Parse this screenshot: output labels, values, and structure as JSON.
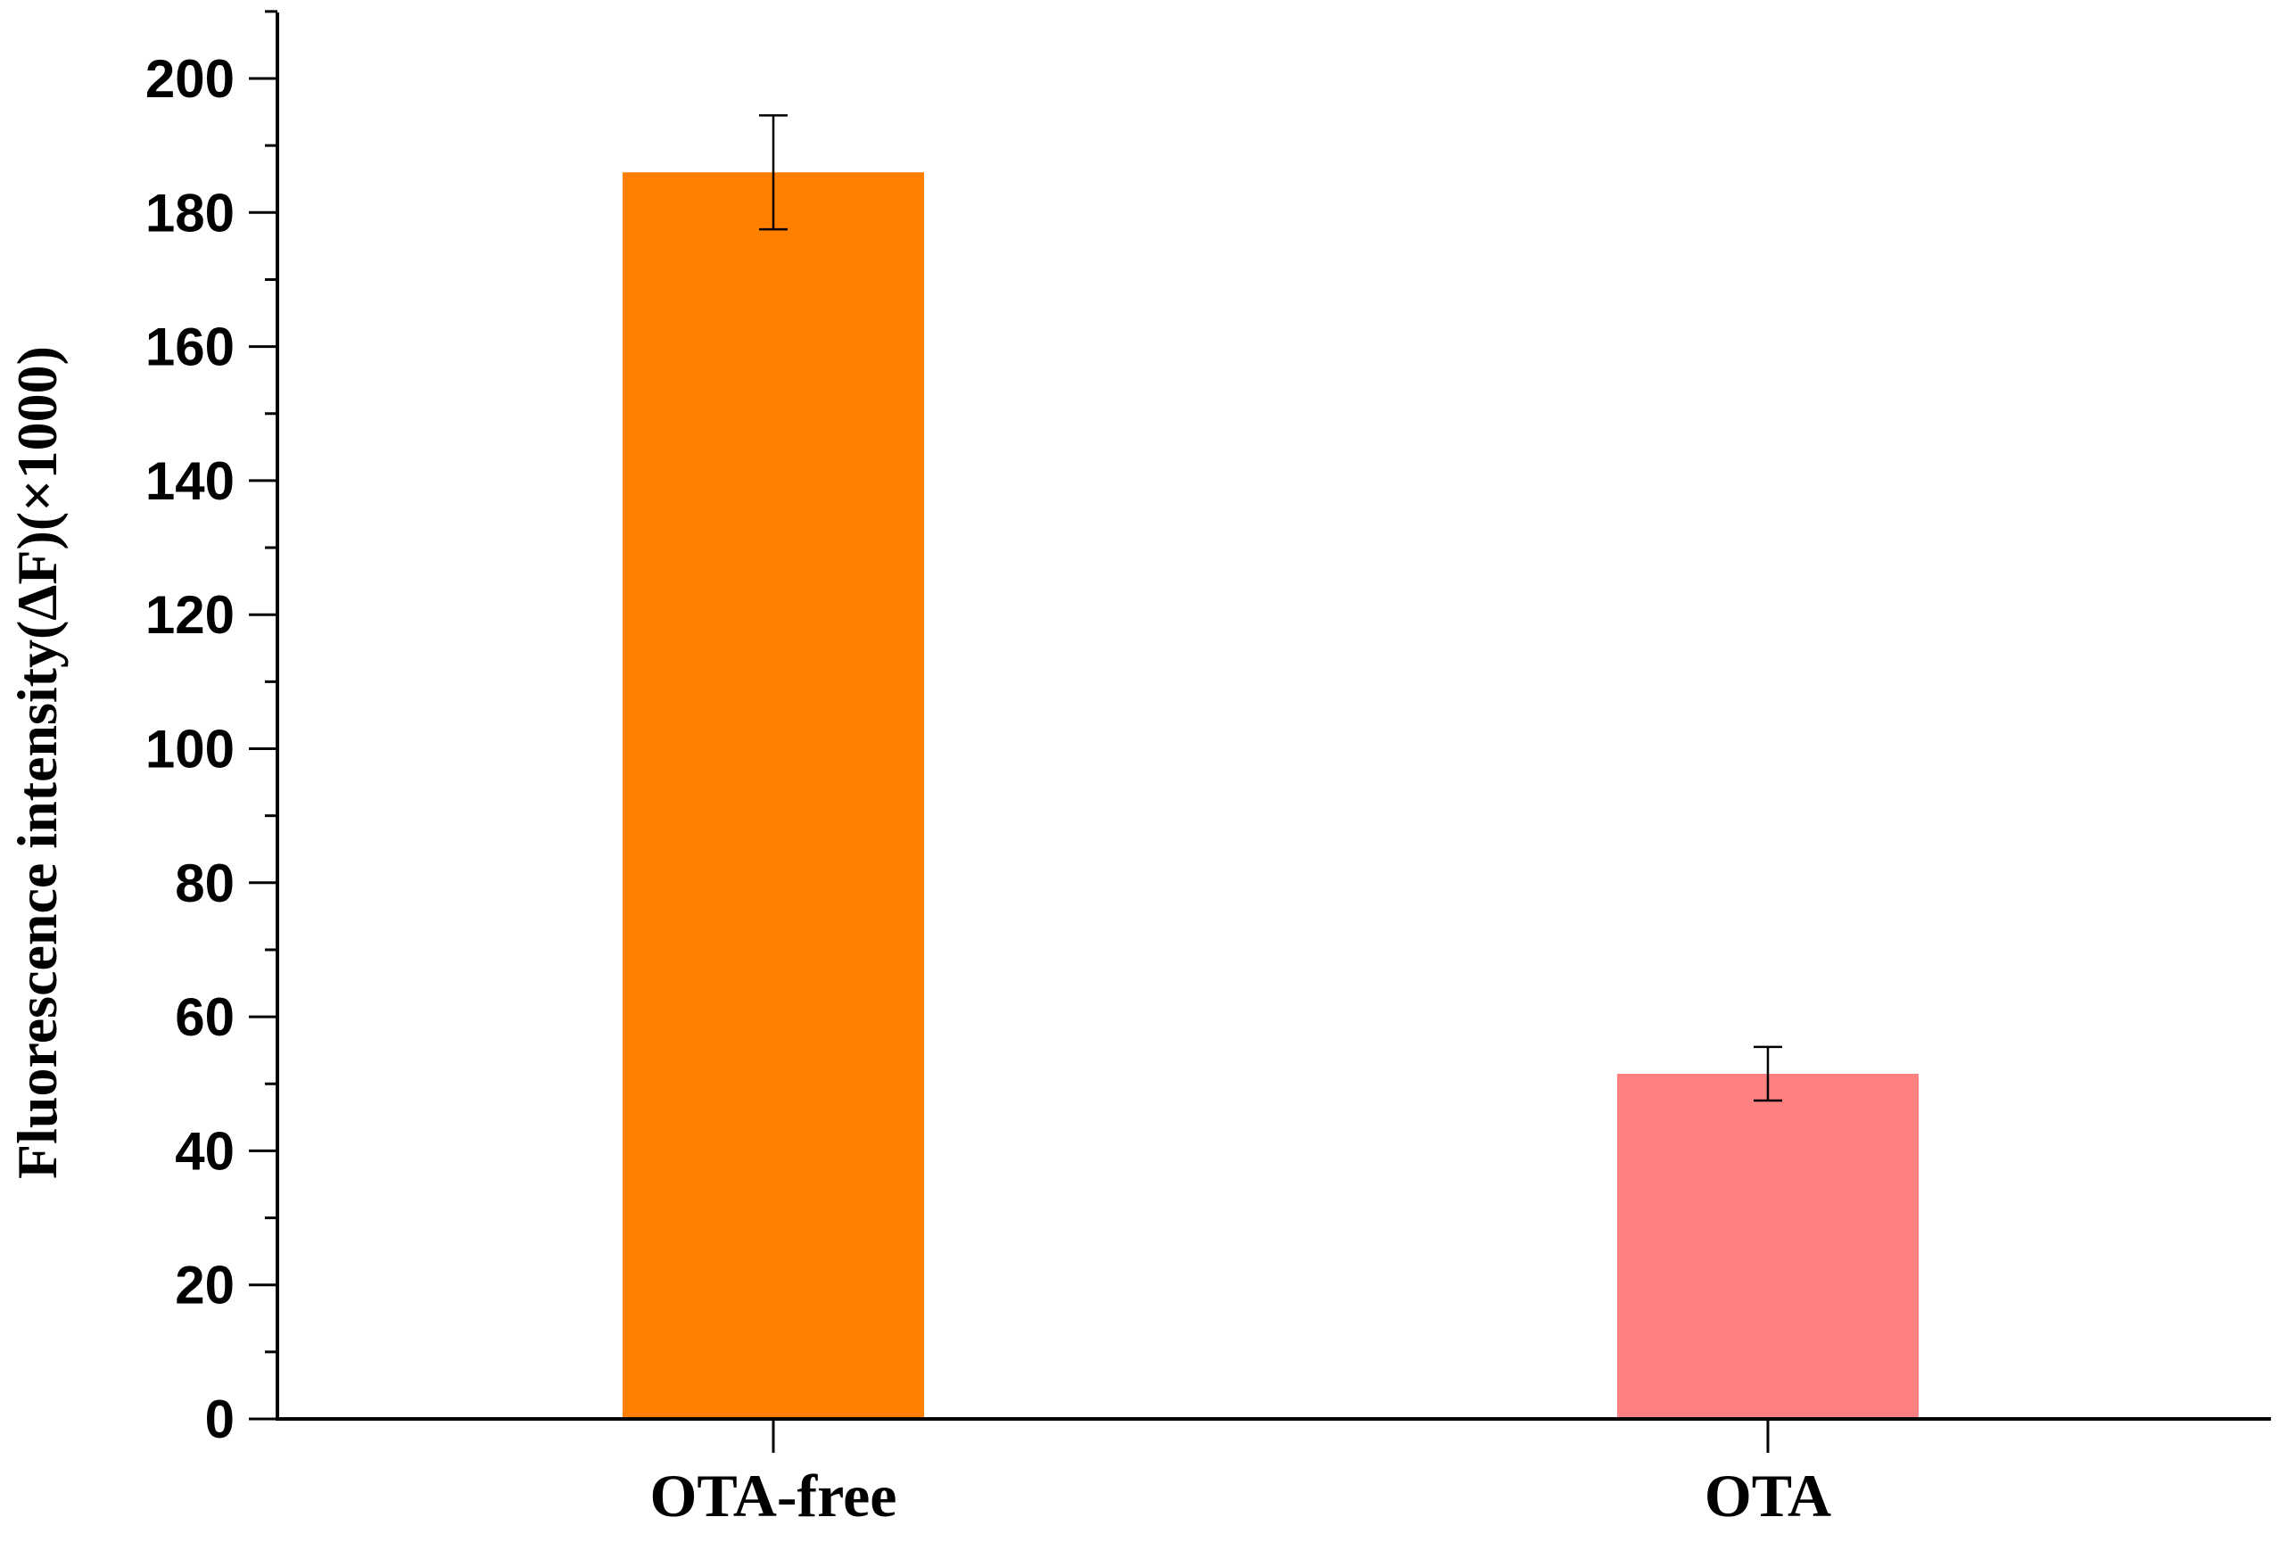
{
  "chart_data": {
    "type": "bar",
    "title": "",
    "xlabel": "",
    "ylabel": "Fluorescence intensity(ΔF)(×1000)",
    "categories": [
      "OTA-free",
      "OTA"
    ],
    "values": [
      186,
      51.5
    ],
    "error": [
      8.5,
      4
    ],
    "colors": [
      "#FF8000",
      "#FF8080"
    ],
    "ylim": [
      0,
      210
    ],
    "yticks": [
      0,
      20,
      40,
      60,
      80,
      100,
      120,
      140,
      160,
      180,
      200
    ],
    "ytick_labels": [
      "0",
      "20",
      "40",
      "60",
      "80",
      "100",
      "120",
      "140",
      "160",
      "180",
      "200"
    ],
    "minor_ticks": true,
    "grid": false,
    "legend": "none"
  }
}
